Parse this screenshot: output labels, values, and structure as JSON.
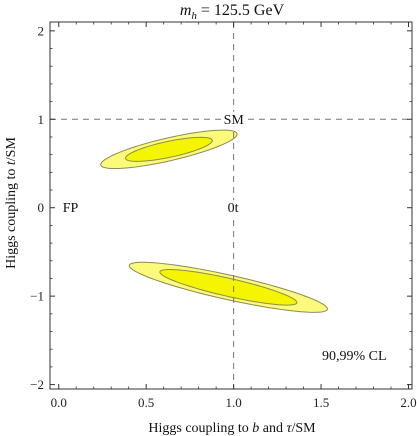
{
  "chart_data": {
    "type": "contour",
    "title": "m_h = 125.5 GeV",
    "title_parts": {
      "symbol": "m",
      "subscript": "h",
      "rest": " = 125.5 GeV"
    },
    "xlabel": "Higgs coupling to b and τ/SM",
    "xlabel_parts": {
      "pre": "Higgs coupling to ",
      "italic1": "b",
      "mid": " and ",
      "italic2": "τ",
      "post": "/SM"
    },
    "ylabel": "Higgs coupling to t/SM",
    "ylabel_parts": {
      "pre": "Higgs coupling to ",
      "italic": "t",
      "post": "/SM"
    },
    "xlim": [
      -0.05,
      2.02
    ],
    "ylim": [
      -2.05,
      2.1
    ],
    "x_ticks": [
      0.0,
      0.5,
      1.0,
      1.5,
      2.0
    ],
    "x_tick_labels": [
      "0.0",
      "0.5",
      "1.0",
      "1.5",
      "2.0"
    ],
    "y_ticks": [
      -2,
      -1,
      0,
      1,
      2
    ],
    "y_tick_labels": [
      "−2",
      "−1",
      "0",
      "1",
      "2"
    ],
    "reference_lines": {
      "x": 1.0,
      "y": 1.0,
      "style": "dashed"
    },
    "confidence_levels_label": "90,99% CL",
    "point_labels": [
      {
        "text": "SM",
        "x": 1.0,
        "y": 1.0
      },
      {
        "text": "FP",
        "x": 0.0,
        "y": 0.0
      },
      {
        "text": "0t",
        "x": 1.0,
        "y": 0.0
      }
    ],
    "regions": [
      {
        "name": "upper",
        "center": [
          0.63,
          0.66
        ],
        "inner": {
          "semi_major": 0.27,
          "semi_minor": 0.085,
          "angle_deg": 24.5,
          "level": "90%"
        },
        "outer": {
          "semi_major": 0.43,
          "semi_minor": 0.12,
          "angle_deg": 26,
          "level": "99%"
        }
      },
      {
        "name": "lower",
        "center": [
          0.97,
          -0.9
        ],
        "inner": {
          "semi_major": 0.43,
          "semi_minor": 0.095,
          "angle_deg": -25,
          "level": "90%"
        },
        "outer": {
          "semi_major": 0.62,
          "semi_minor": 0.13,
          "angle_deg": -24.5,
          "level": "99%"
        }
      }
    ],
    "colors": {
      "inner_fill": "#f5f500",
      "outer_fill": "#fbfa7a",
      "contour_stroke": "#8c8c50",
      "frame": "#333333",
      "dashed_line": "#777777"
    }
  }
}
